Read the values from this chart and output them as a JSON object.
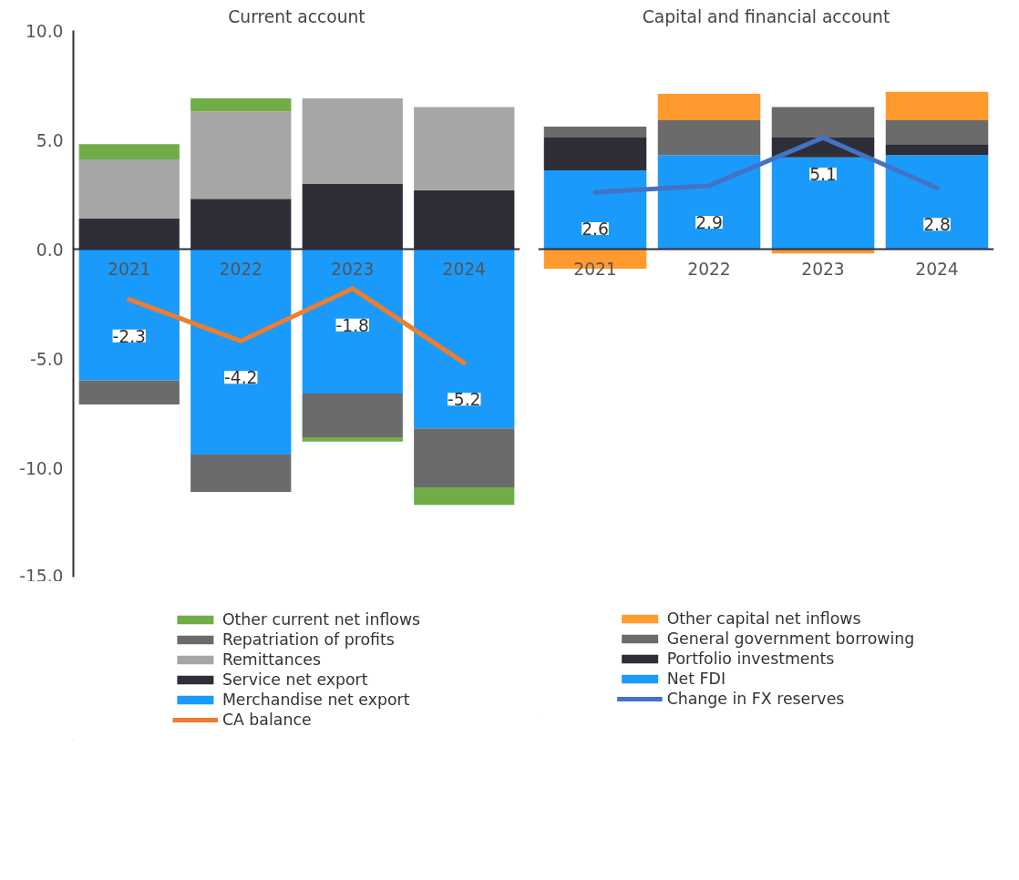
{
  "chart_data": [
    {
      "type": "bar",
      "stacked": true,
      "title": "Current account",
      "categories": [
        "2021",
        "2022",
        "2023",
        "2024"
      ],
      "ylim": [
        -15,
        10
      ],
      "yticks": [
        {
          "value": -15,
          "label": "-15.0"
        },
        {
          "value": -10,
          "label": "-10.0"
        },
        {
          "value": -5,
          "label": "-5.0"
        },
        {
          "value": 0,
          "label": "0.0"
        },
        {
          "value": 5,
          "label": "5.0"
        },
        {
          "value": 10,
          "label": "10.0"
        }
      ],
      "legend": "bottom",
      "grid": false,
      "series": [
        {
          "name": "Merchandise net export",
          "color": "#1a9afa",
          "values": [
            -6.0,
            -9.4,
            -6.6,
            -8.2
          ]
        },
        {
          "name": "Service net export",
          "color": "#2e2e38",
          "values": [
            1.4,
            2.3,
            3.0,
            2.7
          ]
        },
        {
          "name": "Remittances",
          "color": "#a6a6a6",
          "values": [
            2.7,
            4.0,
            3.9,
            3.8
          ]
        },
        {
          "name": "Repatriation of profits",
          "color": "#6b6b6b",
          "values": [
            -1.1,
            -1.7,
            -2.0,
            -2.7
          ]
        },
        {
          "name": "Other current net inflows",
          "color": "#70ad47",
          "values": [
            0.7,
            0.6,
            -0.2,
            -0.8
          ]
        },
        {
          "name": "CA balance",
          "type": "line",
          "color": "#ed7d31",
          "values": [
            -2.3,
            -4.2,
            -1.8,
            -5.2
          ],
          "value_labels": [
            "-2.3",
            "-4.2",
            "-1.8",
            "-5.2"
          ]
        }
      ]
    },
    {
      "type": "bar",
      "stacked": true,
      "title": "Capital and financial account",
      "categories": [
        "2021",
        "2022",
        "2023",
        "2024"
      ],
      "tick_labels": "x",
      "legend": "bottom",
      "grid": false,
      "series": [
        {
          "name": "Net FDI",
          "color": "#1a9afa",
          "values": [
            3.6,
            4.3,
            4.2,
            4.3
          ]
        },
        {
          "name": "Portfolio investments",
          "color": "#2e2e38",
          "values": [
            1.5,
            0.0,
            0.9,
            0.5
          ]
        },
        {
          "name": "General government borrowing",
          "color": "#6b6b6b",
          "values": [
            0.5,
            1.6,
            1.4,
            1.1
          ]
        },
        {
          "name": "Other capital net inflows",
          "color": "#ff9a2e",
          "values": [
            -0.9,
            1.2,
            -0.2,
            1.3
          ]
        },
        {
          "name": "Change in FX reserves",
          "type": "line",
          "color": "#4472c4",
          "values": [
            2.6,
            2.9,
            5.1,
            2.8
          ],
          "value_labels": [
            "2.6",
            "2.9",
            "5.1",
            "2.8"
          ]
        }
      ]
    }
  ]
}
